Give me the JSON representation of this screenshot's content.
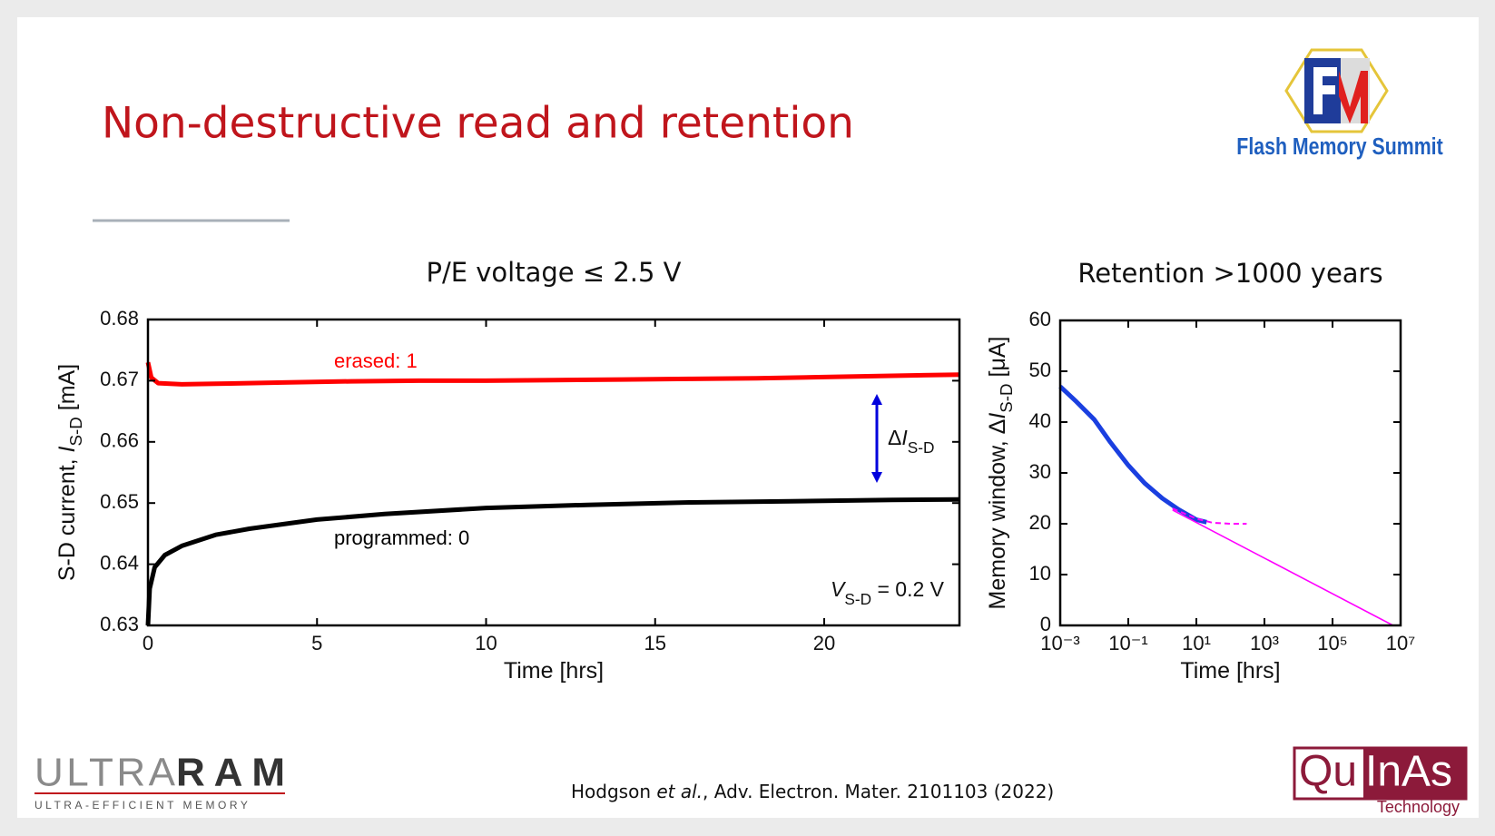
{
  "slide": {
    "title": "Non-destructive read and retention",
    "fms_logo_text": "Flash Memory Summit",
    "ultraram_light": "ULTRA",
    "ultraram_bold": "RAM",
    "ultraram_tagline": "ULTRA-EFFICIENT MEMORY",
    "quinas_left": "Qu",
    "quinas_right": "InAs",
    "quinas_sub": "Technology",
    "citation": [
      "Hodgson ",
      "et al.",
      ", Adv. Electron. Mater. 2101103 (2022)"
    ]
  },
  "chart_data": [
    {
      "type": "line",
      "title": "P/E voltage ≤ 2.5 V",
      "xlabel": [
        "Time [hrs]"
      ],
      "ylabel": [
        "S-D current, ",
        "I",
        "S-D",
        " [mA]"
      ],
      "xlim": [
        0,
        24
      ],
      "xticks": [
        0,
        5,
        10,
        15,
        20
      ],
      "ylim": [
        0.63,
        0.68
      ],
      "yticks": [
        0.63,
        0.64,
        0.65,
        0.66,
        0.67,
        0.68
      ],
      "series": [
        {
          "name": "erased: 1",
          "color": "#ff0000",
          "x": [
            0,
            0.1,
            0.3,
            1,
            2,
            4,
            6,
            8,
            10,
            12,
            14,
            16,
            18,
            20,
            22,
            24
          ],
          "values": [
            0.673,
            0.6705,
            0.6696,
            0.6694,
            0.6695,
            0.6697,
            0.6699,
            0.67,
            0.67,
            0.6701,
            0.6702,
            0.6703,
            0.6704,
            0.6706,
            0.6708,
            0.671
          ]
        },
        {
          "name": "programmed: 0",
          "color": "#000000",
          "x": [
            0,
            0.05,
            0.2,
            0.5,
            1,
            2,
            3,
            5,
            7,
            10,
            13,
            16,
            19,
            22,
            24
          ],
          "values": [
            0.63,
            0.636,
            0.6395,
            0.6415,
            0.643,
            0.6448,
            0.6458,
            0.6473,
            0.6482,
            0.6492,
            0.6497,
            0.6501,
            0.6503,
            0.6505,
            0.6506
          ]
        }
      ],
      "annotations": [
        [
          "Δ",
          "I",
          "S-D"
        ],
        [
          "V",
          "S-D",
          " = 0.2 V"
        ]
      ],
      "arrow_color": "#0000dd"
    },
    {
      "type": "line",
      "title": "Retention >1000 years",
      "xlabel": [
        "Time [hrs]"
      ],
      "ylabel": [
        "Memory window, Δ",
        "I",
        "S-D",
        " [μA]"
      ],
      "xlog": true,
      "xlim": [
        0.001,
        10000000
      ],
      "xticks": [
        {
          "value": 0.001,
          "label": "10⁻³"
        },
        {
          "value": 0.1,
          "label": "10⁻¹"
        },
        {
          "value": 10,
          "label": "10¹"
        },
        {
          "value": 1000,
          "label": "10³"
        },
        {
          "value": 100000,
          "label": "10⁵"
        },
        {
          "value": 10000000,
          "label": "10⁷"
        }
      ],
      "ylim": [
        0,
        60
      ],
      "yticks": [
        0,
        10,
        20,
        30,
        40,
        50,
        60
      ],
      "series": [
        {
          "color": "#1a3fe0",
          "x": [
            0.001,
            0.003,
            0.01,
            0.03,
            0.1,
            0.3,
            1,
            3,
            10,
            20
          ],
          "values": [
            47,
            44,
            40.5,
            36,
            31.5,
            28,
            25,
            22.8,
            20.8,
            20.3
          ]
        },
        {
          "color": "#ff00ff",
          "x": [
            2,
            6000000
          ],
          "values": [
            22.7,
            0
          ]
        },
        {
          "color": "#ff00ff",
          "dashed": true,
          "x": [
            2,
            10,
            30,
            100,
            300
          ],
          "values": [
            23,
            21,
            20.2,
            20,
            20
          ]
        }
      ]
    }
  ]
}
